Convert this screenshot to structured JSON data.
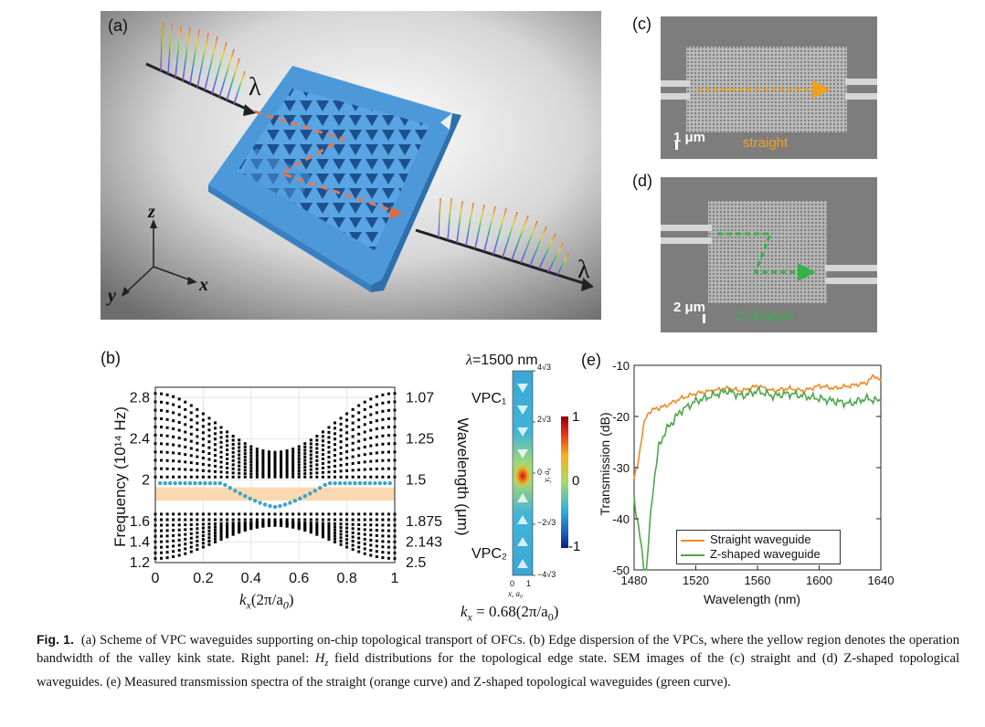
{
  "panels": {
    "a": {
      "label": "(a)",
      "lambda_in": "λ",
      "lambda_out": "λ",
      "axis_x": "x",
      "axis_y": "y",
      "axis_z": "z"
    },
    "b": {
      "label": "(b)",
      "left_ticks": [
        "2.8",
        "2.4",
        "2",
        "1.6",
        "1.4",
        "1.2"
      ],
      "right_ticks": [
        "1.07",
        "1.25",
        "1.5",
        "1.875",
        "2.143",
        "2.5"
      ],
      "x_ticks": [
        "0",
        "0.2",
        "0.4",
        "0.6",
        "0.8",
        "1"
      ],
      "ylabel": "Frequency (10¹⁴ Hz)",
      "y2label": "Wavelength (μm)",
      "xlabel": "k",
      "xlabel_sub": "x",
      "xlabel_unit": "(2π/a",
      "xlabel_unit_sub": "0",
      "xlabel_close": ")"
    },
    "field": {
      "title_lambda": "λ",
      "title_value": "=1500 nm",
      "vpc1": "VPC₁",
      "vpc2": "VPC₂",
      "y_ticks": [
        "4√3",
        "2√3",
        "0",
        "−2√3",
        "−4√3"
      ],
      "y_label": "y, a₀",
      "x_ticks": [
        "0",
        "1"
      ],
      "x_label": "x, a₀",
      "cbar_ticks": [
        "1",
        "0",
        "-1"
      ],
      "kx_text": "k",
      "kx_sub": "x",
      "kx_value": " = 0.68(2π/a",
      "kx_value_sub": "0",
      "kx_close": ")"
    },
    "c": {
      "label": "(c)",
      "scale": "1 μm",
      "name": "straight"
    },
    "d": {
      "label": "(d)",
      "scale": "2 μm",
      "name": "Z-shaped"
    },
    "e": {
      "label": "(e)",
      "ylabel": "Transmission (dB)",
      "xlabel": "Wavelength (nm)",
      "legend": [
        "Straight waveguide",
        "Z-shaped waveguide"
      ]
    }
  },
  "chart_data": [
    {
      "type": "scatter",
      "title": "",
      "xlabel": "k_x (2π/a0)",
      "ylabel": "Frequency (10^14 Hz)",
      "y2label": "Wavelength (μm)",
      "xlim": [
        0,
        1
      ],
      "ylim": [
        1.2,
        2.9
      ],
      "x_ticks": [
        0,
        0.2,
        0.4,
        0.6,
        0.8,
        1
      ],
      "y_ticks": [
        1.2,
        1.4,
        1.6,
        2,
        2.4,
        2.8
      ],
      "y2_ticks": [
        2.5,
        2.143,
        1.875,
        1.5,
        1.25,
        1.07
      ],
      "shaded_band": [
        1.8,
        1.93
      ],
      "series": [
        {
          "name": "upper bulk bands",
          "color": "#000000",
          "edge_top": 2.84,
          "edge_bottom": 2.03,
          "min_top": 2.25,
          "count": 11
        },
        {
          "name": "lower bulk bands",
          "color": "#000000",
          "edge_top": 1.67,
          "edge_bottom": 1.24,
          "max_bottom": 1.56,
          "count": 9
        },
        {
          "name": "edge state",
          "color": "#3aa6c9",
          "x": [
            0.02,
            0.1,
            0.2,
            0.3,
            0.36,
            0.42,
            0.5,
            0.58,
            0.64,
            0.7,
            0.8,
            0.9,
            0.98
          ],
          "y": [
            1.97,
            1.97,
            1.97,
            1.96,
            1.9,
            1.8,
            1.74,
            1.8,
            1.9,
            1.96,
            1.97,
            1.97,
            1.97
          ]
        }
      ]
    },
    {
      "type": "line",
      "title": "",
      "xlabel": "Wavelength (nm)",
      "ylabel": "Transmission (dB)",
      "xlim": [
        1480,
        1640
      ],
      "ylim": [
        -50,
        -10
      ],
      "x_ticks": [
        1480,
        1520,
        1560,
        1600,
        1640
      ],
      "y_ticks": [
        -10,
        -20,
        -30,
        -40,
        -50
      ],
      "legend_position": "bottom-right",
      "series": [
        {
          "name": "Straight waveguide",
          "color": "#f08a24",
          "x": [
            1480,
            1482,
            1484,
            1486,
            1488,
            1490,
            1494,
            1500,
            1510,
            1520,
            1530,
            1540,
            1550,
            1560,
            1570,
            1580,
            1590,
            1600,
            1610,
            1620,
            1630,
            1636,
            1640
          ],
          "y": [
            -32,
            -30,
            -26,
            -22,
            -20,
            -19,
            -18.5,
            -18,
            -16.5,
            -15.5,
            -15,
            -14.5,
            -15,
            -14,
            -15,
            -14.5,
            -15,
            -14,
            -14.5,
            -14,
            -13.5,
            -12,
            -13
          ]
        },
        {
          "name": "Z-shaped waveguide",
          "color": "#4da64a",
          "x": [
            1480,
            1482,
            1484,
            1486,
            1488,
            1490,
            1492,
            1494,
            1496,
            1500,
            1505,
            1510,
            1520,
            1530,
            1540,
            1550,
            1560,
            1570,
            1580,
            1590,
            1600,
            1610,
            1620,
            1630,
            1640
          ],
          "y": [
            -36,
            -40,
            -44,
            -49,
            -50,
            -42,
            -35,
            -30,
            -26,
            -23,
            -21,
            -19,
            -17,
            -16,
            -15,
            -16,
            -15,
            -16,
            -15.5,
            -16,
            -16.5,
            -17,
            -17.5,
            -16.5,
            -17
          ]
        }
      ]
    }
  ],
  "caption": {
    "fig": "Fig. 1.",
    "text1": "(a) Scheme of VPC waveguides supporting on-chip topological transport of OFCs. (b) Edge dispersion of the VPCs, where the yellow region denotes the operation bandwidth of the valley kink state. Right panel: ",
    "hz_main": "H",
    "hz_sub": "z",
    "text2": " field distributions for the topological edge state. SEM images of the (c) straight and (d) Z-shaped topological waveguides. (e) Measured transmission spectra of the straight (orange curve) and Z-shaped topological waveguides (green curve)."
  }
}
